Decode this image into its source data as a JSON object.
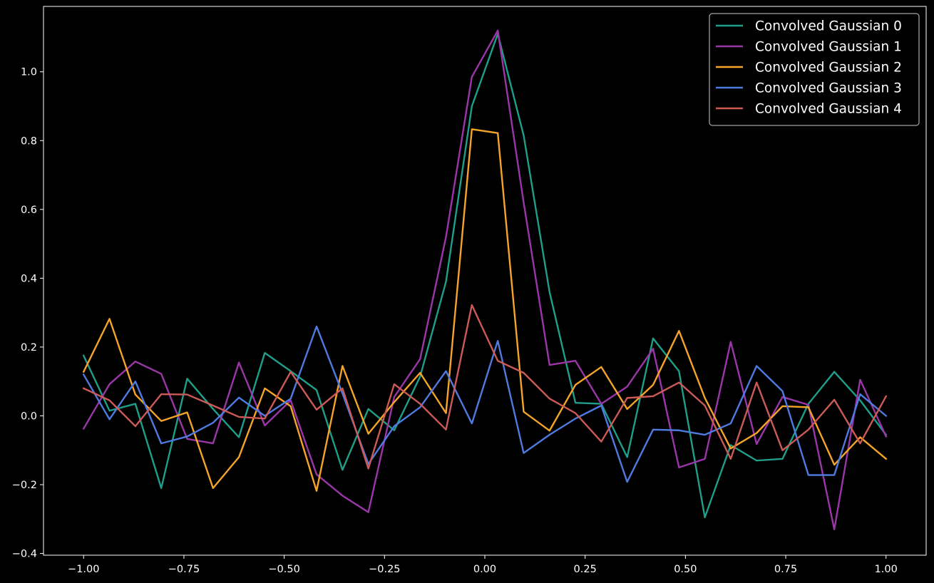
{
  "chart_data": {
    "type": "line",
    "title": "",
    "xlabel": "",
    "ylabel": "",
    "xlim": [
      -1.1,
      1.1
    ],
    "ylim": [
      -0.405,
      1.19
    ],
    "grid": false,
    "legend_position": "top-right",
    "x_ticks": [
      -1.0,
      -0.75,
      -0.5,
      -0.25,
      0.0,
      0.25,
      0.5,
      0.75,
      1.0
    ],
    "x_tick_labels": [
      "−1.00",
      "−0.75",
      "−0.50",
      "−0.25",
      "0.00",
      "0.25",
      "0.50",
      "0.75",
      "1.00"
    ],
    "y_ticks": [
      -0.4,
      -0.2,
      0.0,
      0.2,
      0.4,
      0.6,
      0.8,
      1.0
    ],
    "y_tick_labels": [
      "−0.4",
      "−0.2",
      "0.0",
      "0.2",
      "0.4",
      "0.6",
      "0.8",
      "1.0"
    ],
    "x": [
      -1.0,
      -0.9355,
      -0.871,
      -0.8065,
      -0.7419,
      -0.6774,
      -0.6129,
      -0.5484,
      -0.4839,
      -0.4194,
      -0.3548,
      -0.2903,
      -0.2258,
      -0.1613,
      -0.0968,
      -0.0323,
      0.0323,
      0.0968,
      0.1613,
      0.2258,
      0.2903,
      0.3548,
      0.4194,
      0.4839,
      0.5484,
      0.6129,
      0.6774,
      0.7419,
      0.8065,
      0.871,
      0.9355,
      1.0
    ],
    "series": [
      {
        "name": "Convolved Gaussian 0",
        "color": "#1f9e89",
        "values": [
          0.175,
          0.015,
          0.035,
          -0.21,
          0.108,
          0.02,
          -0.062,
          0.183,
          0.13,
          0.075,
          -0.157,
          0.02,
          -0.042,
          0.114,
          0.39,
          0.9,
          1.11,
          0.815,
          0.36,
          0.038,
          0.035,
          -0.12,
          0.225,
          0.13,
          -0.295,
          -0.085,
          -0.13,
          -0.125,
          0.035,
          0.128,
          0.045,
          -0.055
        ]
      },
      {
        "name": "Convolved Gaussian 1",
        "color": "#9a36a8",
        "values": [
          -0.037,
          0.092,
          0.158,
          0.122,
          -0.067,
          -0.08,
          0.155,
          -0.028,
          0.045,
          -0.17,
          -0.232,
          -0.28,
          0.055,
          0.165,
          0.52,
          0.985,
          1.12,
          0.62,
          0.148,
          0.16,
          0.035,
          0.085,
          0.195,
          -0.15,
          -0.125,
          0.215,
          -0.082,
          0.055,
          0.032,
          -0.33,
          0.105,
          -0.06
        ]
      },
      {
        "name": "Convolved Gaussian 2",
        "color": "#f5a42a",
        "values": [
          0.128,
          0.282,
          0.062,
          -0.015,
          0.01,
          -0.21,
          -0.12,
          0.08,
          0.028,
          -0.218,
          0.145,
          -0.052,
          0.04,
          0.125,
          0.008,
          0.833,
          0.822,
          0.012,
          -0.043,
          0.09,
          0.142,
          0.02,
          0.09,
          0.247,
          0.052,
          -0.095,
          -0.05,
          0.028,
          0.025,
          -0.142,
          -0.062,
          -0.125
        ]
      },
      {
        "name": "Convolved Gaussian 3",
        "color": "#4f7be0",
        "values": [
          0.12,
          -0.01,
          0.1,
          -0.08,
          -0.06,
          -0.02,
          0.053,
          0.0,
          0.05,
          0.26,
          0.065,
          -0.14,
          -0.03,
          0.025,
          0.13,
          -0.022,
          0.218,
          -0.108,
          -0.055,
          -0.008,
          0.03,
          -0.192,
          -0.04,
          -0.042,
          -0.055,
          -0.022,
          0.145,
          0.072,
          -0.172,
          -0.172,
          0.063,
          0.0
        ]
      },
      {
        "name": "Convolved Gaussian 4",
        "color": "#cc5a57",
        "values": [
          0.08,
          0.045,
          -0.03,
          0.063,
          0.062,
          0.03,
          -0.003,
          -0.008,
          0.128,
          0.018,
          0.08,
          -0.153,
          0.092,
          0.035,
          -0.04,
          0.322,
          0.16,
          0.125,
          0.05,
          0.008,
          -0.075,
          0.052,
          0.057,
          0.097,
          0.03,
          -0.125,
          0.097,
          -0.1,
          -0.04,
          0.047,
          -0.08,
          0.057
        ]
      }
    ]
  }
}
